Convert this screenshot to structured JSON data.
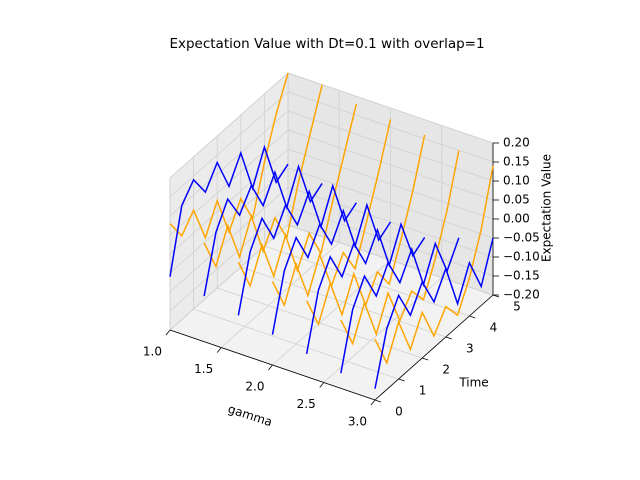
{
  "chart_data": {
    "type": "line3d",
    "title": "Expectation Value with Dt=0.1 with overlap=1",
    "xlabel": "gamma",
    "ylabel": "Time",
    "zlabel": "Expectation Value",
    "xlim": [
      1,
      3
    ],
    "ylim": [
      0,
      5
    ],
    "zlim": [
      -0.2,
      0.2
    ],
    "xticks": [
      {
        "value": 1,
        "label": "1.0"
      },
      {
        "value": 1.5,
        "label": "1.5"
      },
      {
        "value": 2,
        "label": "2.0"
      },
      {
        "value": 2.5,
        "label": "2.5"
      },
      {
        "value": 3,
        "label": "3.0"
      }
    ],
    "yticks": [
      0,
      1,
      2,
      3,
      4,
      5
    ],
    "zticks": [
      {
        "value": 0.2,
        "label": "0.20"
      },
      {
        "value": 0.15,
        "label": "0.15"
      },
      {
        "value": 0.1,
        "label": "0.10"
      },
      {
        "value": 0.05,
        "label": "0.05"
      },
      {
        "value": 0,
        "label": "0.00"
      },
      {
        "value": -0.05,
        "label": "−0.05"
      },
      {
        "value": -0.1,
        "label": "−0.10"
      },
      {
        "value": -0.15,
        "label": "−0.15"
      },
      {
        "value": -0.2,
        "label": "−0.20"
      }
    ],
    "grid": true,
    "time": [
      0,
      0.5,
      1,
      1.5,
      2,
      2.5,
      3,
      3.5,
      4,
      4.5,
      5
    ],
    "series": [
      {
        "color": "orange",
        "gamma": 1.0,
        "values": [
          0.08,
          0.02,
          0.06,
          -0.04,
          0.03,
          -0.08,
          -0.02,
          -0.1,
          0.02,
          0.12,
          0.2
        ]
      },
      {
        "color": "blue",
        "gamma": 1.0,
        "values": [
          -0.06,
          0.1,
          0.14,
          0.08,
          0.13,
          0.04,
          0.1,
          -0.02,
          0.06,
          -0.06,
          -0.04
        ]
      },
      {
        "color": "orange",
        "gamma": 1.333,
        "values": [
          0.06,
          -0.03,
          0.05,
          -0.06,
          0.02,
          -0.1,
          -0.04,
          -0.12,
          0.0,
          0.1,
          0.2
        ]
      },
      {
        "color": "blue",
        "gamma": 1.333,
        "values": [
          -0.08,
          0.06,
          0.12,
          0.05,
          0.1,
          0.02,
          0.08,
          -0.04,
          0.04,
          -0.08,
          -0.06
        ]
      },
      {
        "color": "orange",
        "gamma": 1.667,
        "values": [
          0.04,
          -0.05,
          0.03,
          -0.08,
          0.0,
          -0.12,
          -0.05,
          -0.13,
          -0.02,
          0.08,
          0.18
        ]
      },
      {
        "color": "blue",
        "gamma": 1.667,
        "values": [
          -0.1,
          0.04,
          0.1,
          0.02,
          0.08,
          0.0,
          0.06,
          -0.06,
          0.02,
          -0.1,
          -0.08
        ]
      },
      {
        "color": "orange",
        "gamma": 2.0,
        "values": [
          0.02,
          -0.07,
          0.01,
          -0.1,
          -0.02,
          -0.13,
          -0.07,
          -0.14,
          -0.04,
          0.06,
          0.17
        ]
      },
      {
        "color": "blue",
        "gamma": 2.0,
        "values": [
          -0.12,
          0.02,
          0.08,
          0.0,
          0.06,
          -0.02,
          0.04,
          -0.08,
          0.0,
          -0.12,
          -0.1
        ]
      },
      {
        "color": "orange",
        "gamma": 2.333,
        "values": [
          0.0,
          -0.09,
          -0.01,
          -0.12,
          -0.04,
          -0.15,
          -0.09,
          -0.15,
          -0.06,
          0.04,
          0.16
        ]
      },
      {
        "color": "blue",
        "gamma": 2.333,
        "values": [
          -0.14,
          0.0,
          0.06,
          -0.02,
          0.04,
          -0.04,
          0.02,
          -0.1,
          -0.02,
          -0.13,
          -0.11
        ]
      },
      {
        "color": "orange",
        "gamma": 2.667,
        "values": [
          -0.02,
          -0.11,
          -0.03,
          -0.14,
          -0.06,
          -0.16,
          -0.11,
          -0.16,
          -0.08,
          0.02,
          0.15
        ]
      },
      {
        "color": "blue",
        "gamma": 2.667,
        "values": [
          -0.16,
          -0.02,
          0.04,
          -0.04,
          0.02,
          -0.06,
          0.0,
          -0.12,
          -0.04,
          -0.14,
          -0.08
        ]
      },
      {
        "color": "orange",
        "gamma": 3.0,
        "values": [
          -0.04,
          -0.13,
          -0.05,
          -0.15,
          -0.08,
          -0.17,
          -0.12,
          -0.17,
          -0.1,
          0.0,
          0.14
        ]
      },
      {
        "color": "blue",
        "gamma": 3.0,
        "values": [
          -0.17,
          -0.04,
          0.02,
          -0.06,
          0.0,
          -0.08,
          -0.02,
          -0.14,
          -0.06,
          -0.15,
          -0.05
        ]
      }
    ]
  }
}
